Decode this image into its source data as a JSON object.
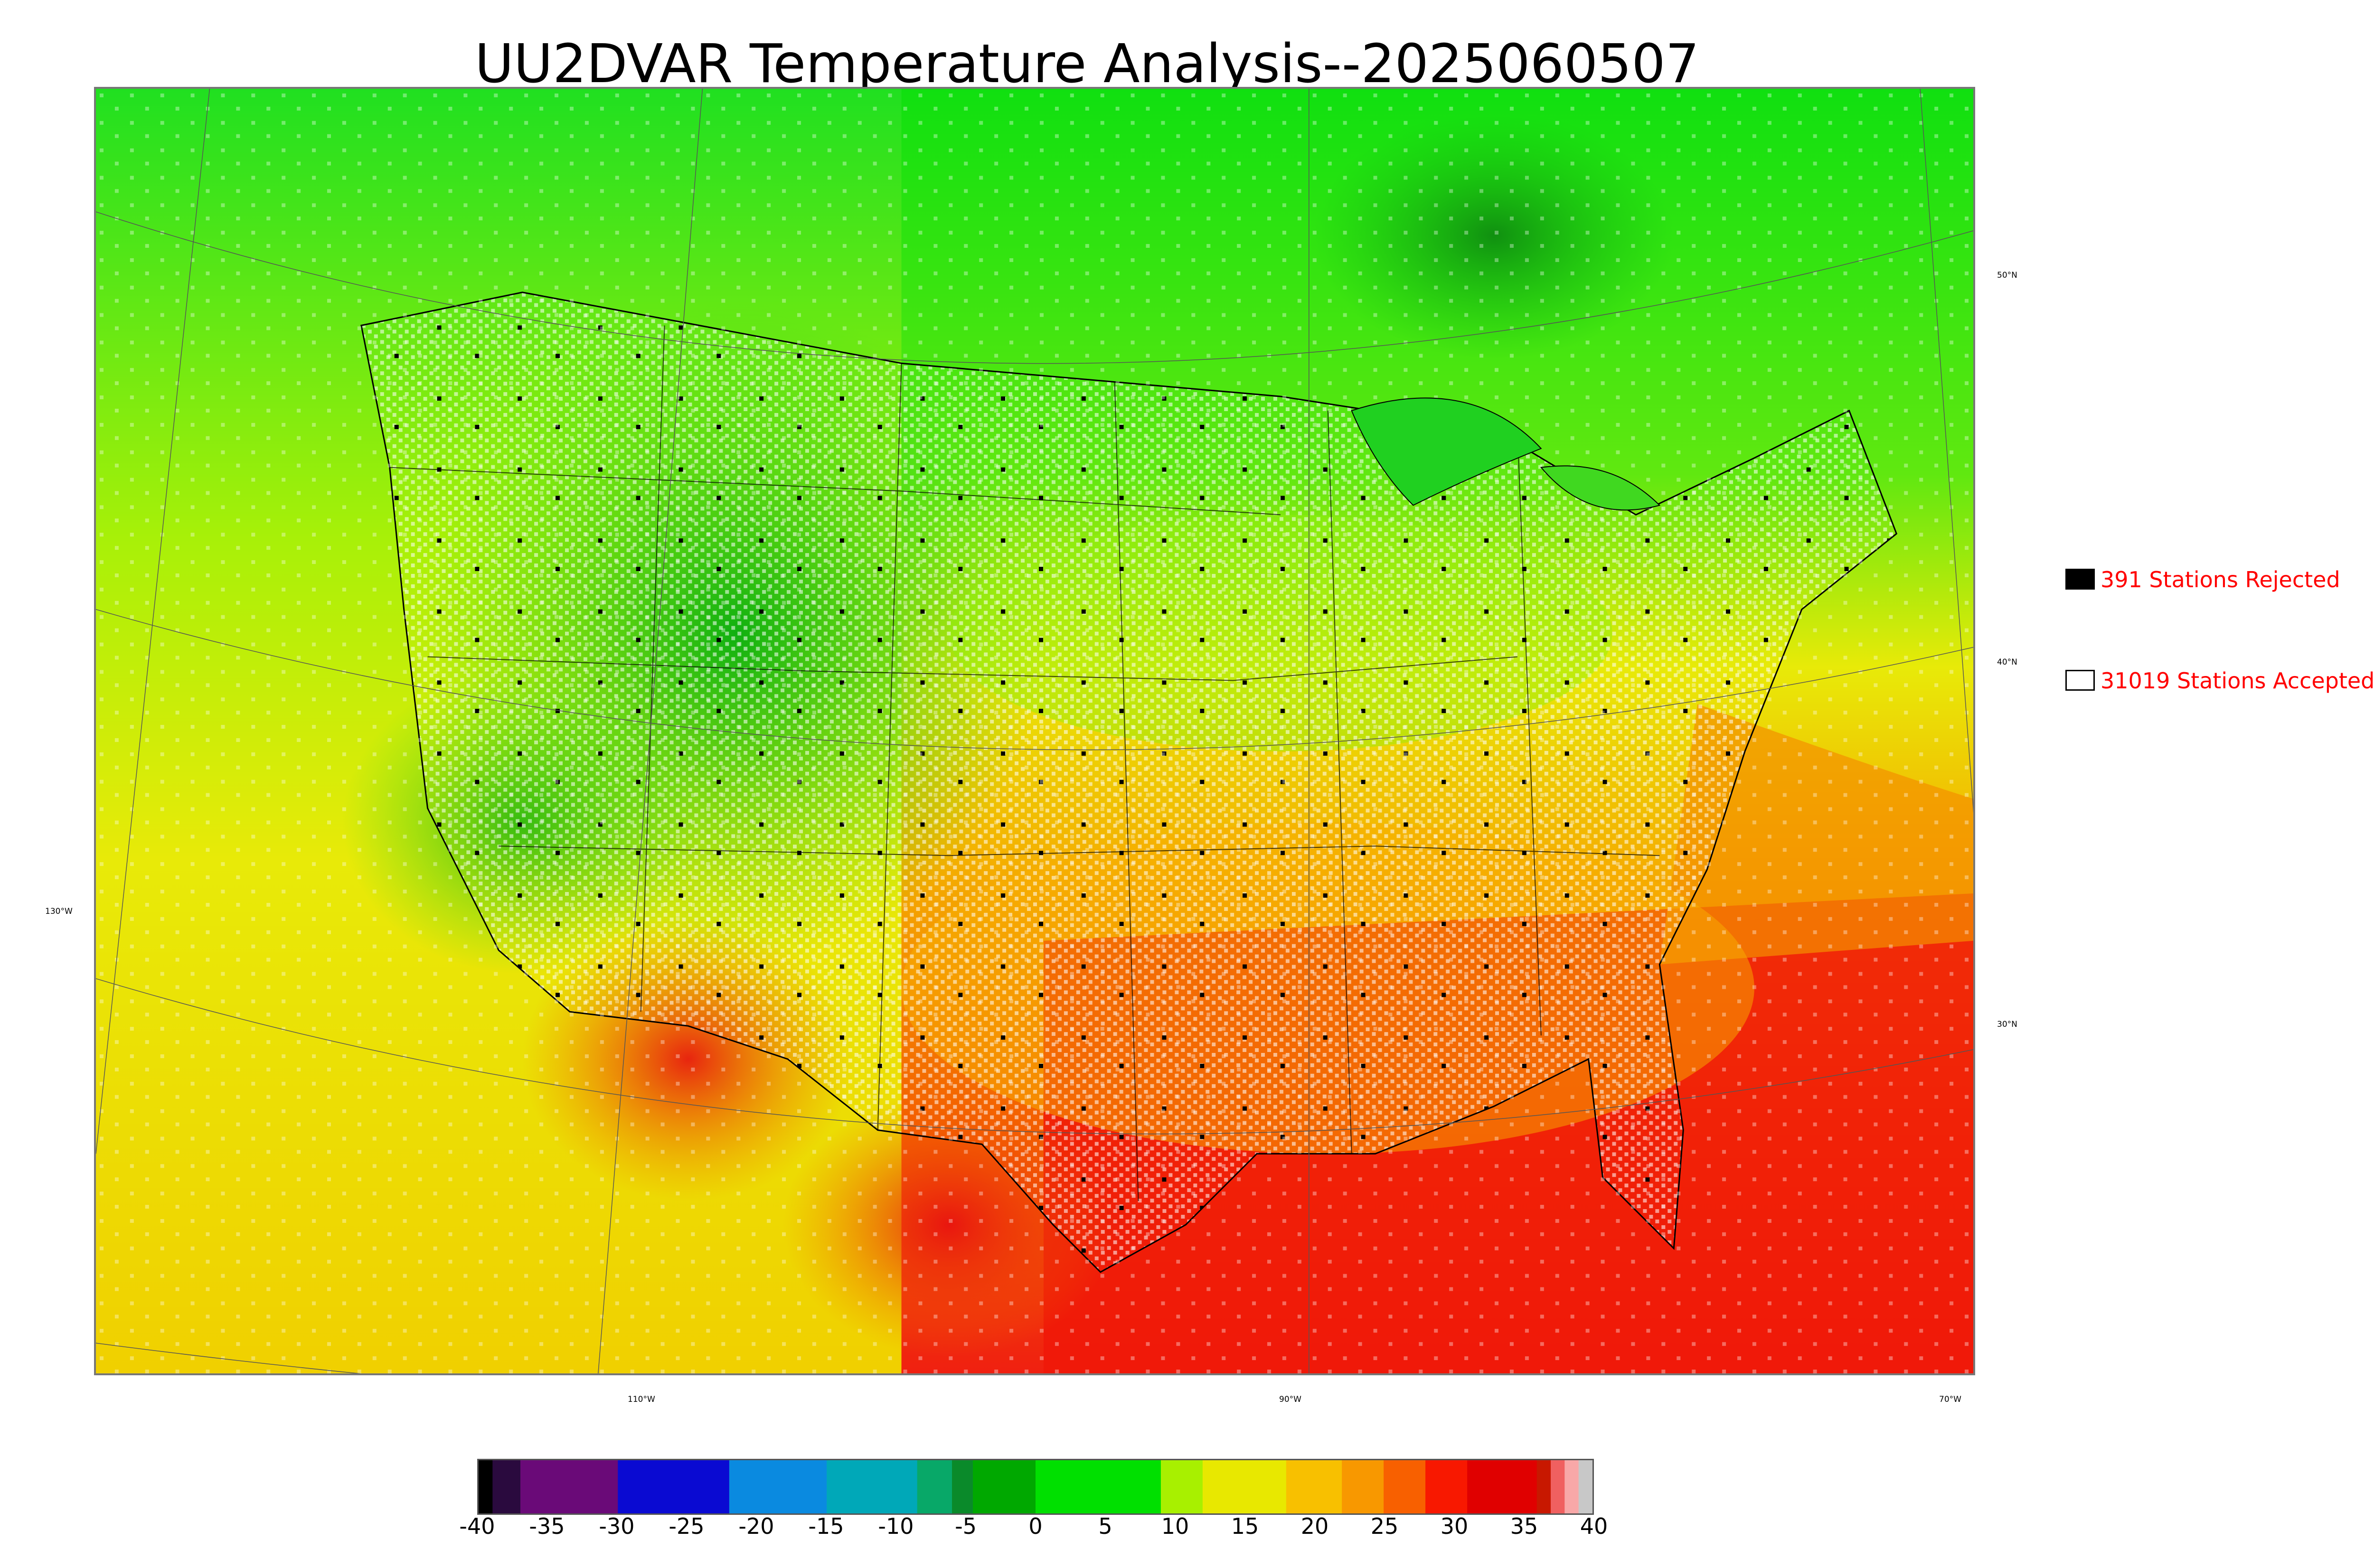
{
  "title": "UU2DVAR Temperature Analysis--2025060507",
  "map": {
    "longitude_labels": [
      "130°W",
      "110°W",
      "90°W",
      "70°W"
    ],
    "latitude_labels": [
      "50°N",
      "40°N",
      "30°N"
    ]
  },
  "legend": {
    "rejected": {
      "label": "391 Stations Rejected",
      "color": "#000000"
    },
    "accepted": {
      "label": "31019 Stations Accepted",
      "color": "#ffffff"
    }
  },
  "colorbar": {
    "ticks": [
      "-40",
      "-35",
      "-30",
      "-25",
      "-20",
      "-15",
      "-10",
      "-5",
      "0",
      "5",
      "10",
      "15",
      "20",
      "25",
      "30",
      "35",
      "40"
    ],
    "min": -40,
    "max": 40,
    "stops": [
      {
        "from": -40,
        "to": -39,
        "color": "#000000"
      },
      {
        "from": -39,
        "to": -37,
        "color": "#2a0a3e"
      },
      {
        "from": -37,
        "to": -30,
        "color": "#6a0a78"
      },
      {
        "from": -30,
        "to": -22,
        "color": "#0a0ad2"
      },
      {
        "from": -22,
        "to": -15,
        "color": "#0a8ae0"
      },
      {
        "from": -15,
        "to": -8.5,
        "color": "#00a8b8"
      },
      {
        "from": -8.5,
        "to": -6,
        "color": "#08a868"
      },
      {
        "from": -6,
        "to": -4.5,
        "color": "#0a8a2a"
      },
      {
        "from": -4.5,
        "to": 0,
        "color": "#00a800"
      },
      {
        "from": 0,
        "to": 9,
        "color": "#00e000"
      },
      {
        "from": 9,
        "to": 12,
        "color": "#a8f000"
      },
      {
        "from": 12,
        "to": 18,
        "color": "#e8e800"
      },
      {
        "from": 18,
        "to": 22,
        "color": "#f8c000"
      },
      {
        "from": 22,
        "to": 25,
        "color": "#f89800"
      },
      {
        "from": 25,
        "to": 28,
        "color": "#f86000"
      },
      {
        "from": 28,
        "to": 31,
        "color": "#f81800"
      },
      {
        "from": 31,
        "to": 36,
        "color": "#e00000"
      },
      {
        "from": 36,
        "to": 37,
        "color": "#c81800"
      },
      {
        "from": 37,
        "to": 38,
        "color": "#f06060"
      },
      {
        "from": 38,
        "to": 39,
        "color": "#f8a8a8"
      },
      {
        "from": 39,
        "to": 40,
        "color": "#c8c8c8"
      }
    ]
  },
  "colors": {
    "ocean_west": "#e0ea08",
    "ocean_gulf": "#f01808",
    "atlantic": "#f4b000",
    "canada": "#10e010",
    "hudson": "#10a010",
    "rockies": "#10c810",
    "plains": "#b8f008",
    "southeast": "#f8c000",
    "desert": "#e83010"
  }
}
